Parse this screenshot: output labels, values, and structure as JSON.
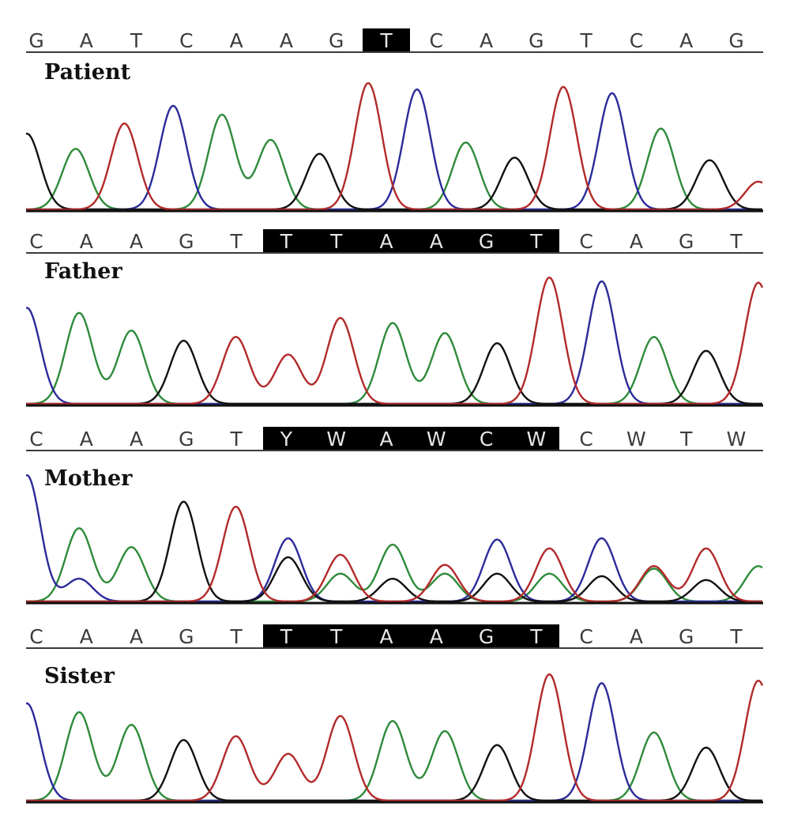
{
  "panels": [
    {
      "label": "Patient",
      "bases": [
        "G",
        "A",
        "T",
        "C",
        "A",
        "A",
        "G",
        "T",
        "C",
        "A",
        "G",
        "T",
        "C",
        "A",
        "G"
      ],
      "highlighted_bases": [
        7
      ],
      "trace_order": [
        "black",
        "green",
        "red",
        "blue",
        "green",
        "green",
        "black",
        "red",
        "blue",
        "green",
        "black",
        "red",
        "blue",
        "green",
        "black",
        "red"
      ],
      "trace_heights": [
        0.6,
        0.48,
        0.68,
        0.82,
        0.75,
        0.55,
        0.44,
        1.0,
        0.95,
        0.53,
        0.41,
        0.97,
        0.92,
        0.64,
        0.39,
        0.22
      ]
    },
    {
      "label": "Father",
      "bases": [
        "C",
        "A",
        "A",
        "G",
        "T",
        "T",
        "T",
        "A",
        "A",
        "G",
        "T",
        "C",
        "A",
        "G",
        "T"
      ],
      "highlighted_bases": [
        5,
        6,
        7,
        8,
        9,
        10
      ],
      "trace_order": [
        "blue",
        "green",
        "green",
        "black",
        "red",
        "red",
        "red",
        "green",
        "green",
        "black",
        "red",
        "blue",
        "green",
        "black",
        "red"
      ],
      "trace_heights": [
        0.76,
        0.72,
        0.58,
        0.5,
        0.53,
        0.39,
        0.68,
        0.64,
        0.56,
        0.48,
        1.0,
        0.97,
        0.53,
        0.42,
        0.96
      ]
    },
    {
      "label": "Mother",
      "bases": [
        "C",
        "A",
        "A",
        "G",
        "T",
        "Y",
        "W",
        "A",
        "W",
        "C",
        "W",
        "C",
        "W",
        "T",
        "W"
      ],
      "highlighted_bases": [
        5,
        6,
        7,
        8,
        9,
        10
      ],
      "trace_order": [
        "blue",
        "green",
        "green",
        "black",
        "red",
        "blue",
        "red",
        "green",
        "red",
        "blue",
        "red",
        "blue",
        "red",
        "red",
        "green"
      ],
      "trace_heights": [
        1.0,
        0.58,
        0.43,
        0.79,
        0.75,
        0.5,
        0.37,
        0.45,
        0.29,
        0.49,
        0.42,
        0.5,
        0.28,
        0.42,
        0.28
      ],
      "secondary_traces": [
        {
          "color": "blue",
          "peaks": [
            [
              1,
              0.18
            ]
          ]
        },
        {
          "color": "black",
          "peaks": [
            [
              5,
              0.35
            ],
            [
              7,
              0.18
            ],
            [
              9,
              0.22
            ],
            [
              11,
              0.2
            ],
            [
              13,
              0.17
            ]
          ]
        },
        {
          "color": "green",
          "peaks": [
            [
              6,
              0.22
            ],
            [
              8,
              0.22
            ],
            [
              10,
              0.22
            ],
            [
              12,
              0.26
            ]
          ]
        }
      ]
    },
    {
      "label": "Sister",
      "bases": [
        "C",
        "A",
        "A",
        "G",
        "T",
        "T",
        "T",
        "A",
        "A",
        "G",
        "T",
        "C",
        "A",
        "G",
        "T"
      ],
      "highlighted_bases": [
        5,
        6,
        7,
        8,
        9,
        10
      ],
      "trace_order": [
        "blue",
        "green",
        "green",
        "black",
        "red",
        "red",
        "red",
        "green",
        "green",
        "black",
        "red",
        "blue",
        "green",
        "black",
        "red"
      ],
      "trace_heights": [
        0.77,
        0.7,
        0.6,
        0.48,
        0.51,
        0.37,
        0.67,
        0.63,
        0.55,
        0.44,
        1.0,
        0.93,
        0.54,
        0.42,
        0.95
      ]
    }
  ],
  "colors": {
    "A": "#2e8b3a",
    "C": "#2b2b9a",
    "G": "#111111",
    "T": "#b22a2a",
    "green": "#2e8b3a",
    "blue": "#2b2b9a",
    "black": "#111111",
    "red": "#b22a2a",
    "highlight": "#000000"
  }
}
